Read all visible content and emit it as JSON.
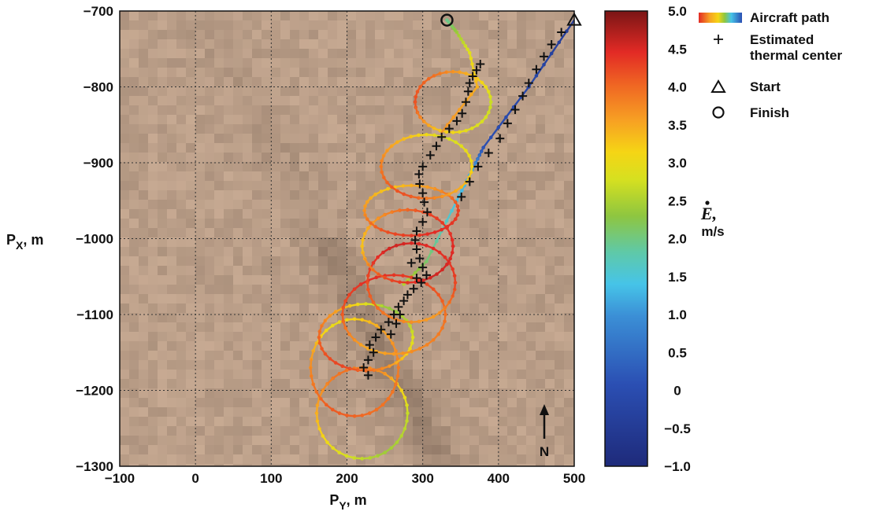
{
  "chart_data": {
    "type": "scatter",
    "xlabel": "P",
    "xlabel_sub": "Y",
    "xlabel_unit": ", m",
    "ylabel": "P",
    "ylabel_sub": "X",
    "ylabel_unit": ", m",
    "xlim": [
      -100,
      500
    ],
    "ylim": [
      -1300,
      -700
    ],
    "xticks": [
      -100,
      0,
      100,
      200,
      300,
      400,
      500
    ],
    "yticks": [
      -700,
      -800,
      -900,
      -1000,
      -1100,
      -1200,
      -1300
    ],
    "grid": true,
    "colorbar": {
      "label_symbol": "E",
      "label_suffix": ",",
      "label_unit": "m/s",
      "range": [
        -1.0,
        5.0
      ],
      "ticks": [
        "5.0",
        "4.5",
        "4.0",
        "3.5",
        "3.0",
        "2.5",
        "2.0",
        "1.5",
        "1.0",
        "0.5",
        "0",
        "−0.5",
        "−1.0"
      ],
      "colormap": "jet"
    },
    "legend": {
      "placement": "top-right-outside",
      "entries": [
        {
          "marker": "colored-line",
          "label": "Aircraft path"
        },
        {
          "marker": "plus",
          "label": "Estimated\n thermal center"
        },
        {
          "marker": "triangle",
          "label": "Start"
        },
        {
          "marker": "circle",
          "label": "Finish"
        }
      ]
    },
    "north_arrow_label": "N",
    "start": {
      "x": 500,
      "y": -712
    },
    "finish": {
      "x": 332,
      "y": -712
    },
    "aircraft_path": {
      "entry_leg": [
        {
          "x": 500,
          "y": -712,
          "e": -0.5
        },
        {
          "x": 440,
          "y": -800,
          "e": -0.2
        },
        {
          "x": 380,
          "y": -880,
          "e": 0.0
        },
        {
          "x": 365,
          "y": -910,
          "e": 1.0
        },
        {
          "x": 345,
          "y": -950,
          "e": 1.2
        },
        {
          "x": 305,
          "y": -1030,
          "e": 2.0
        },
        {
          "x": 275,
          "y": -1060,
          "e": 2.5
        }
      ],
      "loops": [
        {
          "cx": 220,
          "cy": -1230,
          "rx": 60,
          "ry": 60,
          "e": [
            2.6,
            3.6,
            3.9,
            3.4,
            2.8,
            2.3
          ]
        },
        {
          "cx": 210,
          "cy": -1170,
          "rx": 58,
          "ry": 64,
          "e": [
            3.8,
            3.4,
            2.9,
            3.7,
            4.1,
            3.9
          ]
        },
        {
          "cx": 225,
          "cy": -1130,
          "rx": 62,
          "ry": 44,
          "e": [
            2.7,
            2.2,
            3.4,
            4.0,
            4.3,
            3.6
          ]
        },
        {
          "cx": 262,
          "cy": -1100,
          "rx": 68,
          "ry": 52,
          "e": [
            3.9,
            4.3,
            4.5,
            4.1,
            3.4,
            3.7
          ]
        },
        {
          "cx": 285,
          "cy": -1058,
          "rx": 58,
          "ry": 52,
          "e": [
            4.3,
            4.5,
            4.6,
            4.2,
            3.8,
            3.5
          ]
        },
        {
          "cx": 280,
          "cy": -1010,
          "rx": 60,
          "ry": 48,
          "e": [
            4.5,
            4.3,
            3.7,
            3.2,
            4.2,
            4.6
          ]
        },
        {
          "cx": 285,
          "cy": -963,
          "rx": 62,
          "ry": 33,
          "e": [
            4.3,
            3.6,
            3.2,
            3.6,
            4.2,
            4.5
          ]
        },
        {
          "cx": 305,
          "cy": -905,
          "rx": 60,
          "ry": 42,
          "e": [
            3.1,
            2.7,
            3.3,
            3.8,
            4.2,
            3.5
          ]
        },
        {
          "cx": 340,
          "cy": -820,
          "rx": 50,
          "ry": 40,
          "e": [
            2.6,
            3.3,
            3.9,
            4.2,
            3.3,
            2.8
          ]
        }
      ],
      "exit_leg": [
        {
          "x": 325,
          "y": -860,
          "e": 3.6
        },
        {
          "x": 372,
          "y": -800,
          "e": 3.4
        },
        {
          "x": 362,
          "y": -755,
          "e": 2.8
        },
        {
          "x": 345,
          "y": -728,
          "e": 2.3
        },
        {
          "x": 332,
          "y": -712,
          "e": 1.8
        }
      ]
    },
    "thermal_centers": [
      {
        "x": 373,
        "y": -905
      },
      {
        "x": 362,
        "y": -925
      },
      {
        "x": 351,
        "y": -945
      },
      {
        "x": 387,
        "y": -887
      },
      {
        "x": 402,
        "y": -868
      },
      {
        "x": 412,
        "y": -848
      },
      {
        "x": 422,
        "y": -830
      },
      {
        "x": 432,
        "y": -812
      },
      {
        "x": 440,
        "y": -795
      },
      {
        "x": 450,
        "y": -777
      },
      {
        "x": 460,
        "y": -760
      },
      {
        "x": 470,
        "y": -744
      },
      {
        "x": 483,
        "y": -728
      },
      {
        "x": 228,
        "y": -1180
      },
      {
        "x": 222,
        "y": -1170
      },
      {
        "x": 228,
        "y": -1160
      },
      {
        "x": 235,
        "y": -1150
      },
      {
        "x": 230,
        "y": -1140
      },
      {
        "x": 238,
        "y": -1130
      },
      {
        "x": 245,
        "y": -1120
      },
      {
        "x": 255,
        "y": -1110
      },
      {
        "x": 262,
        "y": -1100
      },
      {
        "x": 268,
        "y": -1090
      },
      {
        "x": 275,
        "y": -1082
      },
      {
        "x": 280,
        "y": -1074
      },
      {
        "x": 288,
        "y": -1066
      },
      {
        "x": 298,
        "y": -1058
      },
      {
        "x": 305,
        "y": -1048
      },
      {
        "x": 300,
        "y": -1038
      },
      {
        "x": 296,
        "y": -1026
      },
      {
        "x": 292,
        "y": -1014
      },
      {
        "x": 290,
        "y": -1002
      },
      {
        "x": 292,
        "y": -990
      },
      {
        "x": 300,
        "y": -978
      },
      {
        "x": 306,
        "y": -965
      },
      {
        "x": 302,
        "y": -952
      },
      {
        "x": 300,
        "y": -940
      },
      {
        "x": 296,
        "y": -928
      },
      {
        "x": 295,
        "y": -915
      },
      {
        "x": 300,
        "y": -905
      },
      {
        "x": 310,
        "y": -890
      },
      {
        "x": 318,
        "y": -878
      },
      {
        "x": 325,
        "y": -866
      },
      {
        "x": 335,
        "y": -855
      },
      {
        "x": 345,
        "y": -845
      },
      {
        "x": 352,
        "y": -835
      },
      {
        "x": 357,
        "y": -820
      },
      {
        "x": 360,
        "y": -806
      },
      {
        "x": 362,
        "y": -795
      },
      {
        "x": 366,
        "y": -786
      },
      {
        "x": 371,
        "y": -778
      },
      {
        "x": 376,
        "y": -770
      },
      {
        "x": 258,
        "y": -1126
      },
      {
        "x": 265,
        "y": -1112
      },
      {
        "x": 270,
        "y": -1100
      },
      {
        "x": 292,
        "y": -1052
      },
      {
        "x": 285,
        "y": -1032
      }
    ]
  }
}
